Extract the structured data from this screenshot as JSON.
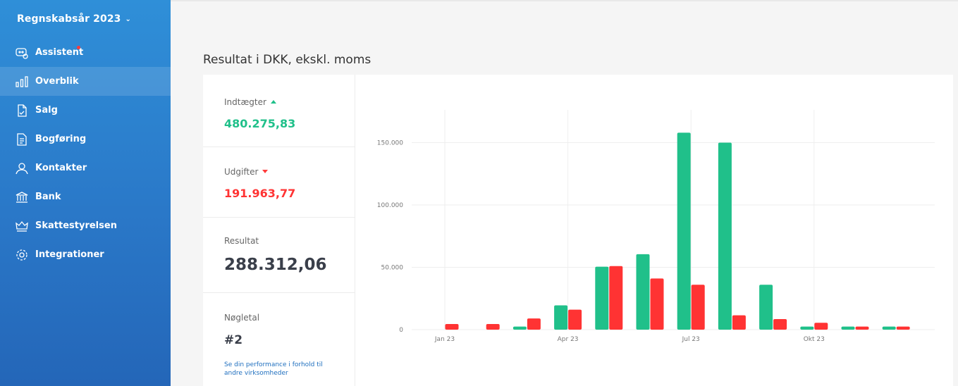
{
  "sidebar": {
    "fiscal_year": "Regnskabsår 2023",
    "items": [
      {
        "label": "Assistent",
        "icon": "assistant-icon"
      },
      {
        "label": "Overblik",
        "icon": "bar-chart-icon"
      },
      {
        "label": "Salg",
        "icon": "invoice-icon"
      },
      {
        "label": "Bogføring",
        "icon": "ledger-icon"
      },
      {
        "label": "Kontakter",
        "icon": "person-icon"
      },
      {
        "label": "Bank",
        "icon": "bank-icon"
      },
      {
        "label": "Skattestyrelsen",
        "icon": "crown-icon"
      },
      {
        "label": "Integrationer",
        "icon": "gear-icon"
      }
    ]
  },
  "main": {
    "title": "Resultat i DKK, ekskl. moms",
    "income_label": "Indtægter",
    "income_value": "480.275,83",
    "expense_label": "Udgifter",
    "expense_value": "191.963,77",
    "result_label": "Resultat",
    "result_value": "288.312,06",
    "kpi_label": "Nøgletal",
    "kpi_value": "#2",
    "kpi_link": "Se din performance i forhold til andre virksomheder"
  },
  "colors": {
    "income": "#20c08a",
    "expense": "#ff3333",
    "accent": "#2f8fd8"
  },
  "chart_data": {
    "type": "bar",
    "categories": [
      "Jan 23",
      "Feb 23",
      "Mar 23",
      "Apr 23",
      "Maj 23",
      "Jun 23",
      "Jul 23",
      "Aug 23",
      "Sep 23",
      "Okt 23",
      "Nov 23",
      "Dec 23"
    ],
    "tick_labels": {
      "0": "Jan 23",
      "3": "Apr 23",
      "6": "Jul 23",
      "9": "Okt 23"
    },
    "series": [
      {
        "values": [
          0,
          0,
          2500,
          19500,
          50500,
          60500,
          158000,
          150000,
          36000,
          2500,
          2500,
          2500
        ]
      },
      {
        "values": [
          4500,
          4500,
          9000,
          16000,
          51000,
          41000,
          36000,
          11500,
          8500,
          5500,
          2500,
          2500
        ]
      }
    ],
    "yticks": [
      0,
      50000,
      100000,
      150000
    ],
    "ytick_labels": [
      "0",
      "50.000",
      "100.000",
      "150.000"
    ],
    "ylim": [
      0,
      175000
    ],
    "grid": true
  }
}
